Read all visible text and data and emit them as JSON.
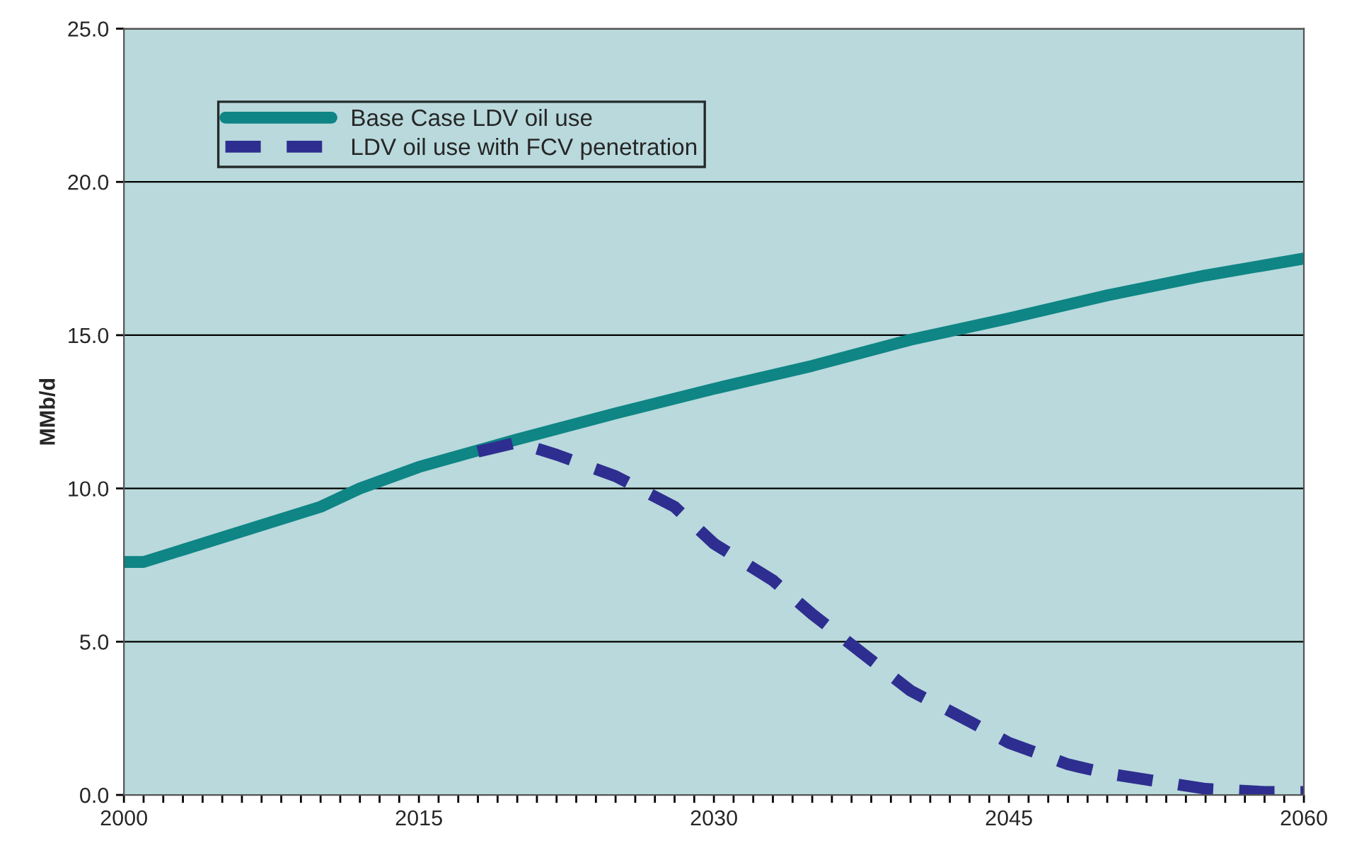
{
  "chart_data": {
    "type": "line",
    "ylabel": "MMb/d",
    "x": [
      2000,
      2001,
      2005,
      2010,
      2012,
      2015,
      2020,
      2025,
      2030,
      2035,
      2040,
      2045,
      2050,
      2055,
      2060
    ],
    "series": [
      {
        "name": "Base Case LDV oil use",
        "color": "#0f8585",
        "line_style": "solid",
        "values": [
          7.6,
          7.6,
          8.4,
          9.4,
          10.0,
          10.7,
          11.6,
          12.45,
          13.25,
          14.0,
          14.85,
          15.55,
          16.3,
          16.95,
          17.5
        ]
      },
      {
        "name": "LDV oil use with FCV penetration",
        "color": "#2e2e90",
        "line_style": "dashed",
        "x": [
          2018,
          2020,
          2022,
          2025,
          2028,
          2030,
          2033,
          2035,
          2038,
          2040,
          2043,
          2045,
          2048,
          2050,
          2053,
          2055,
          2058,
          2060
        ],
        "values": [
          11.2,
          11.5,
          11.1,
          10.4,
          9.4,
          8.2,
          7.0,
          5.9,
          4.4,
          3.4,
          2.4,
          1.7,
          1.0,
          0.7,
          0.4,
          0.2,
          0.1,
          0.1
        ]
      }
    ],
    "xlim": [
      2000,
      2060
    ],
    "xticks": [
      2000,
      {
        "value": 2001,
        "label": null
      },
      {
        "value": 2002,
        "label": null
      },
      {
        "value": 2003,
        "label": null
      },
      {
        "value": 2004,
        "label": null
      },
      {
        "value": 2005,
        "label": null
      },
      {
        "value": 2006,
        "label": null
      },
      {
        "value": 2007,
        "label": null
      },
      {
        "value": 2008,
        "label": null
      },
      {
        "value": 2009,
        "label": null
      },
      {
        "value": 2010,
        "label": null
      },
      {
        "value": 2011,
        "label": null
      },
      {
        "value": 2012,
        "label": null
      },
      {
        "value": 2013,
        "label": null
      },
      {
        "value": 2014,
        "label": null
      },
      2015,
      {
        "value": 2016,
        "label": null
      },
      {
        "value": 2017,
        "label": null
      },
      {
        "value": 2018,
        "label": null
      },
      {
        "value": 2019,
        "label": null
      },
      {
        "value": 2020,
        "label": null
      },
      {
        "value": 2021,
        "label": null
      },
      {
        "value": 2022,
        "label": null
      },
      {
        "value": 2023,
        "label": null
      },
      {
        "value": 2024,
        "label": null
      },
      {
        "value": 2025,
        "label": null
      },
      {
        "value": 2026,
        "label": null
      },
      {
        "value": 2027,
        "label": null
      },
      {
        "value": 2028,
        "label": null
      },
      {
        "value": 2029,
        "label": null
      },
      2030,
      {
        "value": 2031,
        "label": null
      },
      {
        "value": 2032,
        "label": null
      },
      {
        "value": 2033,
        "label": null
      },
      {
        "value": 2034,
        "label": null
      },
      {
        "value": 2035,
        "label": null
      },
      {
        "value": 2036,
        "label": null
      },
      {
        "value": 2037,
        "label": null
      },
      {
        "value": 2038,
        "label": null
      },
      {
        "value": 2039,
        "label": null
      },
      {
        "value": 2040,
        "label": null
      },
      {
        "value": 2041,
        "label": null
      },
      {
        "value": 2042,
        "label": null
      },
      {
        "value": 2043,
        "label": null
      },
      {
        "value": 2044,
        "label": null
      },
      2045,
      {
        "value": 2046,
        "label": null
      },
      {
        "value": 2047,
        "label": null
      },
      {
        "value": 2048,
        "label": null
      },
      {
        "value": 2049,
        "label": null
      },
      {
        "value": 2050,
        "label": null
      },
      {
        "value": 2051,
        "label": null
      },
      {
        "value": 2052,
        "label": null
      },
      {
        "value": 2053,
        "label": null
      },
      {
        "value": 2054,
        "label": null
      },
      {
        "value": 2055,
        "label": null
      },
      {
        "value": 2056,
        "label": null
      },
      {
        "value": 2057,
        "label": null
      },
      {
        "value": 2058,
        "label": null
      },
      {
        "value": 2059,
        "label": null
      },
      2060
    ],
    "ylim": [
      0,
      25
    ],
    "yticks": [
      {
        "value": 0,
        "label": "0.0"
      },
      {
        "value": 5,
        "label": "5.0"
      },
      {
        "value": 10,
        "label": "10.0"
      },
      {
        "value": 15,
        "label": "15.0"
      },
      {
        "value": 20,
        "label": "20.0"
      },
      {
        "value": 25,
        "label": "25.0"
      }
    ],
    "grid": "y",
    "legend": "top left",
    "marker": "none"
  }
}
